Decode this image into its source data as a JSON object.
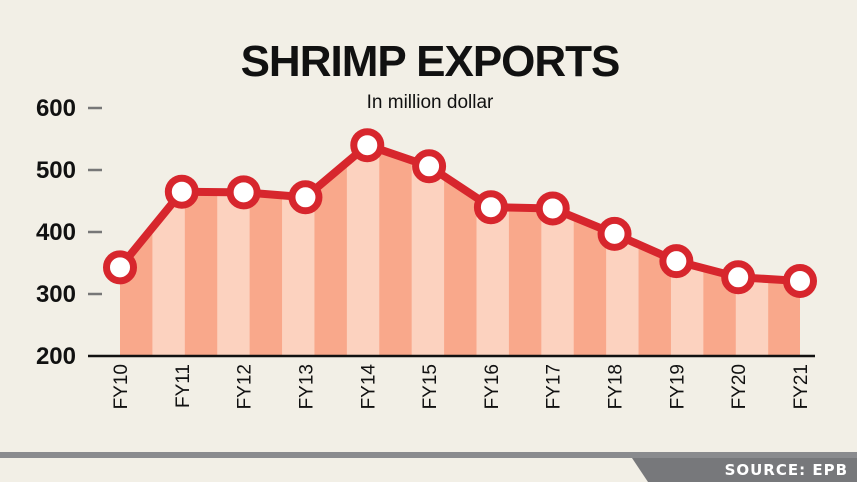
{
  "chart_data": {
    "type": "line",
    "title": "SHRIMP EXPORTS",
    "subtitle": "In million dollar",
    "xlabel": "",
    "ylabel": "",
    "categories": [
      "FY10",
      "FY11",
      "FY12",
      "FY13",
      "FY14",
      "FY15",
      "FY16",
      "FY17",
      "FY18",
      "FY19",
      "FY20",
      "FY21"
    ],
    "values": [
      343,
      465,
      464,
      456,
      540,
      506,
      440,
      438,
      397,
      353,
      327,
      321
    ],
    "ylim": [
      200,
      600
    ],
    "yticks": [
      200,
      300,
      400,
      500,
      600
    ],
    "grid": false,
    "area_fill": true,
    "colors": {
      "line": "#d7262d",
      "marker_fill": "#ffffff",
      "area_dark": "#f9a88b",
      "area_light": "#fcd2bf",
      "background": "#f2efe6"
    }
  },
  "footer": {
    "source": "SOURCE: EPB"
  }
}
